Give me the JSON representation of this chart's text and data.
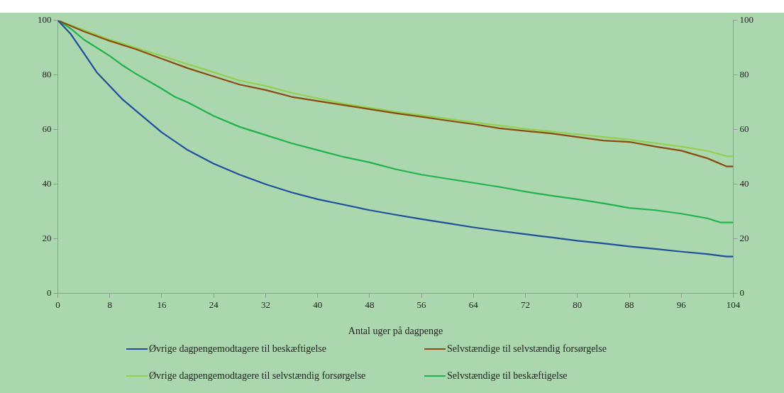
{
  "chart_data": {
    "type": "line",
    "xlabel": "Antal uger på dagpenge",
    "xlim": [
      0,
      104
    ],
    "xticks": [
      0,
      8,
      16,
      24,
      32,
      40,
      48,
      56,
      64,
      72,
      80,
      88,
      96,
      104
    ],
    "ylim": [
      0,
      100
    ],
    "yticks": [
      0,
      20,
      40,
      60,
      80,
      100
    ],
    "y2lim": [
      0,
      100
    ],
    "y2ticks": [
      0,
      20,
      40,
      60,
      80,
      100
    ],
    "legend": "bottom",
    "grid": false,
    "marker": "none",
    "line_style": "solid",
    "series": [
      {
        "name": "Øvrige dagpengemodtagere til beskæftigelse",
        "color": "#1f4e9c",
        "x": [
          0,
          2,
          4,
          6,
          8,
          10,
          12,
          16,
          20,
          24,
          28,
          32,
          36,
          40,
          44,
          48,
          52,
          56,
          60,
          64,
          68,
          72,
          76,
          80,
          84,
          88,
          92,
          96,
          100,
          103,
          104
        ],
        "values": [
          100,
          95,
          88,
          81,
          76,
          71,
          67,
          59,
          52.5,
          47.5,
          43.5,
          40,
          37,
          34.5,
          32.5,
          30.5,
          28.8,
          27.2,
          25.7,
          24.2,
          22.9,
          21.7,
          20.5,
          19.3,
          18.3,
          17.2,
          16.3,
          15.3,
          14.4,
          13.5,
          13.5
        ]
      },
      {
        "name": "Selvstændige til selvstændig forsørgelse",
        "color": "#8b4a10",
        "x": [
          0,
          4,
          8,
          12,
          16,
          20,
          24,
          28,
          32,
          36,
          40,
          44,
          48,
          52,
          56,
          60,
          64,
          68,
          72,
          76,
          80,
          84,
          88,
          92,
          96,
          100,
          103,
          104
        ],
        "values": [
          100,
          96,
          92.5,
          89.5,
          86,
          82.5,
          79.5,
          76.5,
          74.5,
          72,
          70.5,
          69,
          67.5,
          66,
          64.7,
          63.3,
          62,
          60.5,
          59.5,
          58.6,
          57.3,
          56,
          55.5,
          53.8,
          52.3,
          49.5,
          46.5,
          46.5
        ]
      },
      {
        "name": "Øvrige dagpengemodtagere til selvstændig forsørgelse",
        "color": "#92d050",
        "x": [
          0,
          4,
          8,
          12,
          16,
          20,
          24,
          28,
          32,
          36,
          40,
          44,
          48,
          52,
          56,
          60,
          64,
          68,
          72,
          76,
          80,
          84,
          88,
          92,
          96,
          100,
          103,
          104
        ],
        "values": [
          100,
          96.5,
          93,
          90,
          87,
          84,
          81,
          78,
          76,
          73.5,
          71.5,
          69.5,
          68,
          66.5,
          65.3,
          64,
          62.7,
          61.5,
          60.3,
          59.3,
          58.3,
          57.3,
          56.3,
          55,
          53.8,
          52.2,
          50.3,
          50.3
        ]
      },
      {
        "name": "Selvstændige til beskæftigelse",
        "color": "#22b14c",
        "x": [
          0,
          2,
          4,
          6,
          8,
          10,
          12,
          16,
          18,
          20,
          24,
          28,
          32,
          36,
          40,
          44,
          48,
          52,
          56,
          60,
          64,
          68,
          72,
          76,
          80,
          84,
          88,
          92,
          96,
          100,
          102,
          104
        ],
        "values": [
          100,
          97,
          93,
          90,
          87,
          83.5,
          80.5,
          75,
          72,
          70,
          65,
          61,
          58,
          55,
          52.5,
          50,
          48,
          45.5,
          43.5,
          42,
          40.5,
          39,
          37.3,
          35.8,
          34.5,
          33,
          31.3,
          30.5,
          29.2,
          27.5,
          26,
          26
        ]
      }
    ]
  }
}
